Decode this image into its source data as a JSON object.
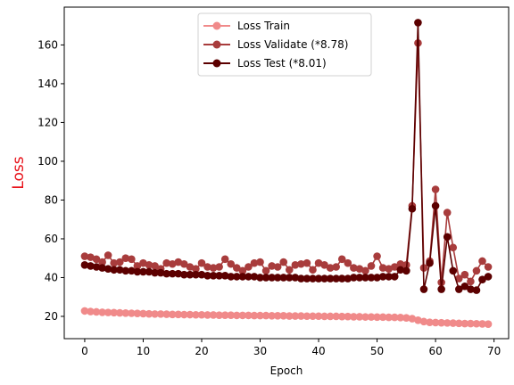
{
  "chart_data": {
    "type": "line",
    "title": "",
    "xlabel": "Epoch",
    "ylabel": "Loss",
    "ylabel_color": "#e8121a",
    "xlim": [
      -3.5,
      72.5
    ],
    "ylim": [
      8.5,
      179.5
    ],
    "xticks": [
      0,
      10,
      20,
      30,
      40,
      50,
      60,
      70
    ],
    "yticks": [
      20,
      40,
      60,
      80,
      100,
      120,
      140,
      160
    ],
    "grid": false,
    "legend_position": "upper center",
    "x": [
      0,
      1,
      2,
      3,
      4,
      5,
      6,
      7,
      8,
      9,
      10,
      11,
      12,
      13,
      14,
      15,
      16,
      17,
      18,
      19,
      20,
      21,
      22,
      23,
      24,
      25,
      26,
      27,
      28,
      29,
      30,
      31,
      32,
      33,
      34,
      35,
      36,
      37,
      38,
      39,
      40,
      41,
      42,
      43,
      44,
      45,
      46,
      47,
      48,
      49,
      50,
      51,
      52,
      53,
      54,
      55,
      56,
      57,
      58,
      59,
      60,
      61,
      62,
      63,
      64,
      65,
      66,
      67,
      68,
      69
    ],
    "series": [
      {
        "name": "Loss Train",
        "color": "#f08a8a",
        "values": [
          22.8,
          22.5,
          22.3,
          22.1,
          22.0,
          21.9,
          21.8,
          21.7,
          21.6,
          21.5,
          21.4,
          21.3,
          21.2,
          21.2,
          21.1,
          21.0,
          21.0,
          20.9,
          20.9,
          20.8,
          20.8,
          20.7,
          20.7,
          20.6,
          20.6,
          20.6,
          20.5,
          20.5,
          20.5,
          20.4,
          20.4,
          20.4,
          20.3,
          20.3,
          20.3,
          20.2,
          20.2,
          20.2,
          20.1,
          20.1,
          20.1,
          20.0,
          20.0,
          20.0,
          19.9,
          19.9,
          19.8,
          19.8,
          19.7,
          19.7,
          19.6,
          19.6,
          19.5,
          19.5,
          19.4,
          19.2,
          18.8,
          18.0,
          17.3,
          16.9,
          16.8,
          16.7,
          16.6,
          16.5,
          16.4,
          16.3,
          16.3,
          16.2,
          16.1,
          16.0
        ]
      },
      {
        "name": "Loss Validate (*8.78)",
        "color": "#a83c3c",
        "values": [
          51.0,
          50.5,
          49.5,
          48.0,
          51.5,
          47.5,
          48.0,
          50.0,
          49.5,
          46.0,
          47.5,
          46.5,
          46.0,
          44.5,
          47.5,
          47.0,
          48.0,
          47.0,
          45.5,
          44.5,
          47.5,
          45.5,
          45.0,
          45.5,
          49.5,
          47.0,
          45.0,
          43.5,
          45.5,
          47.5,
          48.0,
          43.5,
          46.0,
          45.5,
          48.0,
          44.0,
          46.5,
          47.0,
          47.5,
          44.0,
          47.5,
          46.5,
          45.0,
          45.5,
          49.5,
          47.5,
          45.0,
          44.5,
          43.5,
          46.0,
          51.0,
          45.0,
          44.5,
          45.5,
          47.0,
          46.5,
          77.0,
          161.0,
          45.0,
          48.5,
          85.5,
          37.5,
          73.5,
          55.5,
          39.5,
          41.5,
          38.0,
          43.5,
          48.5,
          45.5
        ]
      },
      {
        "name": "Loss Test (*8.01)",
        "color": "#5c0000",
        "values": [
          46.5,
          46.0,
          45.5,
          45.0,
          44.5,
          44.0,
          44.0,
          43.5,
          43.5,
          43.0,
          43.0,
          43.0,
          42.5,
          42.5,
          42.0,
          42.0,
          42.0,
          41.5,
          41.5,
          41.5,
          41.5,
          41.0,
          41.0,
          41.0,
          41.0,
          40.5,
          40.5,
          40.5,
          40.5,
          40.5,
          40.0,
          40.0,
          40.0,
          40.0,
          40.0,
          40.0,
          40.0,
          39.5,
          39.5,
          39.5,
          39.5,
          39.5,
          39.5,
          39.5,
          39.5,
          39.5,
          40.0,
          40.0,
          40.0,
          40.0,
          40.0,
          40.5,
          40.5,
          40.5,
          44.0,
          43.5,
          75.5,
          171.5,
          34.0,
          47.5,
          77.0,
          34.0,
          61.0,
          43.5,
          34.0,
          35.5,
          34.0,
          33.5,
          39.0,
          40.5
        ]
      }
    ]
  }
}
